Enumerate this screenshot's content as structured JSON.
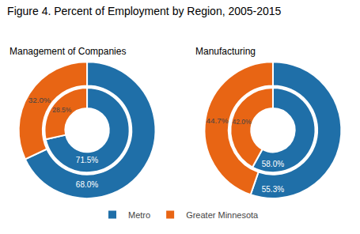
{
  "chart_data": [
    {
      "type": "pie",
      "title": "Figure 4. Percent of Employment by Region, 2005-2015",
      "subtitle": "Management of Companies",
      "categories": [
        "Metro",
        "Greater Minnesota"
      ],
      "colors": [
        "#1f6fa8",
        "#e86514"
      ],
      "series": [
        {
          "values": [
            68.0,
            32.0
          ],
          "value_labels": [
            "68.0%",
            "32.0%"
          ]
        },
        {
          "values": [
            71.5,
            28.5
          ],
          "value_labels": [
            "71.5%",
            "28.5%"
          ]
        }
      ],
      "data_labels": true,
      "legend": "bottom"
    },
    {
      "type": "pie",
      "subtitle": "Manufacturing",
      "categories": [
        "Metro",
        "Greater Minnesota"
      ],
      "colors": [
        "#1f6fa8",
        "#e86514"
      ],
      "series": [
        {
          "values": [
            55.3,
            44.7
          ],
          "value_labels": [
            "55.3%",
            "44.7%"
          ]
        },
        {
          "values": [
            58.0,
            42.0
          ],
          "value_labels": [
            "58.0%",
            "42.0%"
          ]
        }
      ],
      "data_labels": true,
      "legend": "bottom"
    }
  ]
}
